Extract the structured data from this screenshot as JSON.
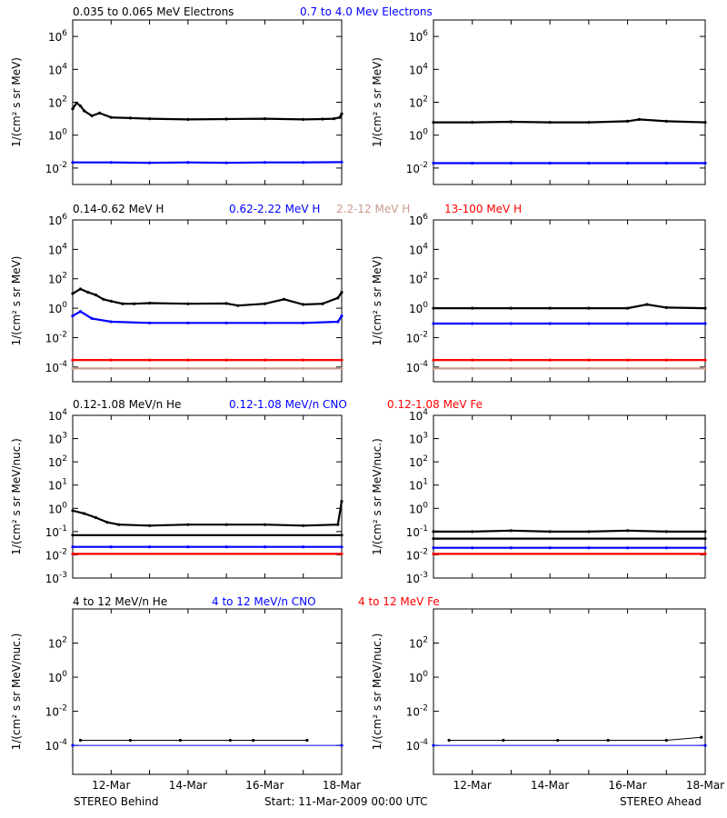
{
  "figure": {
    "footer_left": "STEREO Behind",
    "footer_center": "Start: 11-Mar-2009 00:00 UTC",
    "footer_right": "STEREO Ahead"
  },
  "colors": {
    "black": "#000000",
    "blue": "#0000ff",
    "tan": "#c89a8c",
    "red": "#ff0000"
  },
  "chart_data": [
    {
      "type": "scatter",
      "row": 1,
      "title_series": [
        {
          "name": "0.035 to 0.065 MeV Electrons",
          "color": "#000000"
        },
        {
          "name": "0.7 to 4.0 Mev Electrons",
          "color": "#0000ff"
        }
      ],
      "ylabel": "1/(cm² s sr MeV)",
      "yscale": "log",
      "ylim": [
        0.001,
        10000000
      ],
      "yticks": [
        {
          "base": "10",
          "exp": "-2"
        },
        {
          "base": "10",
          "exp": "0"
        },
        {
          "base": "10",
          "exp": "2"
        },
        {
          "base": "10",
          "exp": "4"
        },
        {
          "base": "10",
          "exp": "6"
        }
      ],
      "ytick_values": [
        0.01,
        1,
        100,
        10000,
        1000000
      ],
      "panels": [
        {
          "name": "STEREO Behind",
          "series": [
            {
              "color": "#000000",
              "x_days": [
                0,
                0.1,
                0.2,
                0.3,
                0.5,
                0.7,
                1,
                1.5,
                2,
                3,
                4,
                5,
                6,
                6.5,
                6.8,
                6.95,
                7
              ],
              "y": [
                40,
                90,
                60,
                30,
                15,
                22,
                12,
                11,
                10,
                9,
                9.5,
                10,
                9,
                9.5,
                10,
                12,
                20
              ]
            },
            {
              "color": "#0000ff",
              "x_days": [
                0,
                1,
                2,
                3,
                4,
                5,
                6,
                7
              ],
              "y": [
                0.022,
                0.022,
                0.021,
                0.022,
                0.021,
                0.022,
                0.022,
                0.023
              ]
            }
          ]
        },
        {
          "name": "STEREO Ahead",
          "series": [
            {
              "color": "#000000",
              "x_days": [
                0,
                1,
                2,
                3,
                4,
                5,
                5.3,
                6,
                7
              ],
              "y": [
                6,
                6,
                6.5,
                6,
                6,
                7,
                9,
                7,
                6
              ]
            },
            {
              "color": "#0000ff",
              "x_days": [
                0,
                1,
                2,
                3,
                4,
                5,
                6,
                7
              ],
              "y": [
                0.02,
                0.02,
                0.02,
                0.02,
                0.02,
                0.02,
                0.02,
                0.02
              ]
            }
          ]
        }
      ]
    },
    {
      "type": "scatter",
      "row": 2,
      "title_series": [
        {
          "name": "0.14-0.62 MeV H",
          "color": "#000000"
        },
        {
          "name": "0.62-2.22 MeV H",
          "color": "#0000ff"
        },
        {
          "name": "2.2-12 MeV H",
          "color": "#c89a8c"
        },
        {
          "name": "13-100 MeV H",
          "color": "#ff0000"
        }
      ],
      "ylabel": "1/(cm² s sr MeV)",
      "yscale": "log",
      "ylim": [
        1e-05,
        1000000
      ],
      "yticks": [
        {
          "base": "10",
          "exp": "-4"
        },
        {
          "base": "10",
          "exp": "-2"
        },
        {
          "base": "10",
          "exp": "0"
        },
        {
          "base": "10",
          "exp": "2"
        },
        {
          "base": "10",
          "exp": "4"
        },
        {
          "base": "10",
          "exp": "6"
        }
      ],
      "ytick_values": [
        0.0001,
        0.01,
        1,
        100,
        10000,
        1000000
      ],
      "panels": [
        {
          "name": "STEREO Behind",
          "series": [
            {
              "color": "#000000",
              "x_days": [
                0,
                0.2,
                0.4,
                0.6,
                0.8,
                1,
                1.3,
                1.6,
                2,
                3,
                4,
                4.3,
                5,
                5.5,
                6,
                6.5,
                6.9,
                7
              ],
              "y": [
                10,
                20,
                12,
                8,
                4,
                3,
                2,
                2,
                2.2,
                2,
                2.1,
                1.5,
                2,
                4,
                1.8,
                2,
                5,
                12
              ]
            },
            {
              "color": "#0000ff",
              "x_days": [
                0,
                0.2,
                0.5,
                1,
                2,
                3,
                4,
                5,
                6,
                6.9,
                7
              ],
              "y": [
                0.3,
                0.6,
                0.2,
                0.12,
                0.1,
                0.1,
                0.1,
                0.1,
                0.1,
                0.12,
                0.3
              ]
            },
            {
              "color": "#c89a8c",
              "x_days": [
                0,
                1,
                2,
                3,
                4,
                5,
                6,
                7
              ],
              "y": [
                8e-05,
                8e-05,
                8e-05,
                8e-05,
                8e-05,
                8e-05,
                8e-05,
                8e-05
              ]
            },
            {
              "color": "#ff0000",
              "x_days": [
                0,
                1,
                2,
                3,
                4,
                5,
                6,
                7
              ],
              "y": [
                0.0003,
                0.0003,
                0.0003,
                0.0003,
                0.0003,
                0.0003,
                0.0003,
                0.0003
              ]
            }
          ]
        },
        {
          "name": "STEREO Ahead",
          "series": [
            {
              "color": "#000000",
              "x_days": [
                0,
                1,
                2,
                3,
                4,
                5,
                5.5,
                6,
                7
              ],
              "y": [
                1,
                1,
                1,
                1,
                1,
                1,
                1.8,
                1.1,
                1
              ]
            },
            {
              "color": "#0000ff",
              "x_days": [
                0,
                1,
                2,
                3,
                4,
                5,
                6,
                7
              ],
              "y": [
                0.09,
                0.09,
                0.09,
                0.09,
                0.09,
                0.09,
                0.09,
                0.09
              ]
            },
            {
              "color": "#c89a8c",
              "x_days": [
                0,
                1,
                2,
                3,
                4,
                5,
                6,
                7
              ],
              "y": [
                8e-05,
                8e-05,
                8e-05,
                8e-05,
                8e-05,
                8e-05,
                8e-05,
                8e-05
              ]
            },
            {
              "color": "#ff0000",
              "x_days": [
                0,
                1,
                2,
                3,
                4,
                5,
                6,
                7
              ],
              "y": [
                0.0003,
                0.0003,
                0.0003,
                0.0003,
                0.0003,
                0.0003,
                0.0003,
                0.0003
              ]
            }
          ]
        }
      ]
    },
    {
      "type": "scatter",
      "row": 3,
      "title_series": [
        {
          "name": "0.12-1.08 MeV/n He",
          "color": "#000000"
        },
        {
          "name": "0.12-1.08 MeV/n CNO",
          "color": "#0000ff"
        },
        {
          "name": "0.12-1.08 MeV Fe",
          "color": "#ff0000"
        }
      ],
      "ylabel": "1/(cm² s sr MeV/nuc.)",
      "yscale": "log",
      "ylim": [
        0.001,
        10000
      ],
      "yticks": [
        {
          "base": "10",
          "exp": "-3"
        },
        {
          "base": "10",
          "exp": "-2"
        },
        {
          "base": "10",
          "exp": "-1"
        },
        {
          "base": "10",
          "exp": "0"
        },
        {
          "base": "10",
          "exp": "1"
        },
        {
          "base": "10",
          "exp": "2"
        },
        {
          "base": "10",
          "exp": "3"
        },
        {
          "base": "10",
          "exp": "4"
        }
      ],
      "ytick_values": [
        0.001,
        0.01,
        0.1,
        1,
        10,
        100,
        1000,
        10000
      ],
      "panels": [
        {
          "name": "STEREO Behind",
          "series": [
            {
              "color": "#000000",
              "x_days": [
                0,
                0.3,
                0.6,
                0.9,
                1.2,
                2,
                3,
                4,
                5,
                6,
                6.9,
                7
              ],
              "y": [
                0.8,
                0.6,
                0.4,
                0.25,
                0.2,
                0.18,
                0.2,
                0.2,
                0.2,
                0.18,
                0.2,
                2
              ]
            },
            {
              "color": "#000000",
              "x_days": [
                0,
                7
              ],
              "y": [
                0.07,
                0.07
              ]
            },
            {
              "color": "#0000ff",
              "x_days": [
                0,
                1,
                2,
                3,
                4,
                5,
                6,
                7
              ],
              "y": [
                0.022,
                0.022,
                0.022,
                0.022,
                0.022,
                0.022,
                0.022,
                0.022
              ]
            },
            {
              "color": "#ff0000",
              "x_days": [
                0,
                7
              ],
              "y": [
                0.011,
                0.011
              ]
            }
          ]
        },
        {
          "name": "STEREO Ahead",
          "series": [
            {
              "color": "#000000",
              "x_days": [
                0,
                1,
                2,
                3,
                4,
                5,
                6,
                7
              ],
              "y": [
                0.1,
                0.1,
                0.11,
                0.1,
                0.1,
                0.11,
                0.1,
                0.1
              ]
            },
            {
              "color": "#000000",
              "x_days": [
                0,
                7
              ],
              "y": [
                0.05,
                0.05
              ]
            },
            {
              "color": "#0000ff",
              "x_days": [
                0,
                1,
                2,
                3,
                4,
                5,
                6,
                7
              ],
              "y": [
                0.02,
                0.02,
                0.02,
                0.02,
                0.02,
                0.02,
                0.02,
                0.02
              ]
            },
            {
              "color": "#ff0000",
              "x_days": [
                0,
                7
              ],
              "y": [
                0.011,
                0.011
              ]
            }
          ]
        }
      ]
    },
    {
      "type": "scatter",
      "row": 4,
      "title_series": [
        {
          "name": "4 to 12 MeV/n He",
          "color": "#000000"
        },
        {
          "name": "4 to 12 MeV/n CNO",
          "color": "#0000ff"
        },
        {
          "name": "4 to 12 MeV Fe",
          "color": "#ff0000"
        }
      ],
      "ylabel": "1/(cm² s sr MeV/nuc.)",
      "yscale": "log",
      "ylim": [
        2e-06,
        10000
      ],
      "yticks": [
        {
          "base": "10",
          "exp": "-4"
        },
        {
          "base": "10",
          "exp": "-2"
        },
        {
          "base": "10",
          "exp": "0"
        },
        {
          "base": "10",
          "exp": "2"
        }
      ],
      "ytick_values": [
        0.0001,
        0.01,
        1,
        100
      ],
      "x_ticks": [
        {
          "label": "12-Mar",
          "day": 1
        },
        {
          "label": "14-Mar",
          "day": 3
        },
        {
          "label": "16-Mar",
          "day": 5
        },
        {
          "label": "18-Mar",
          "day": 7
        }
      ],
      "panels": [
        {
          "name": "STEREO Behind",
          "series": [
            {
              "color": "#000000",
              "x_days": [
                0.2,
                1.5,
                2.8,
                4.1,
                4.7,
                6.1
              ],
              "y": [
                0.0002,
                0.0002,
                0.0002,
                0.0002,
                0.0002,
                0.0002
              ]
            },
            {
              "color": "#0000ff",
              "x_days": [
                0,
                7
              ],
              "y": [
                0.0001,
                0.0001
              ]
            }
          ]
        },
        {
          "name": "STEREO Ahead",
          "series": [
            {
              "color": "#000000",
              "x_days": [
                0.4,
                1.8,
                3.2,
                4.5,
                6.0,
                6.9
              ],
              "y": [
                0.0002,
                0.0002,
                0.0002,
                0.0002,
                0.0002,
                0.0003
              ]
            },
            {
              "color": "#0000ff",
              "x_days": [
                0,
                7
              ],
              "y": [
                0.0001,
                0.0001
              ]
            }
          ]
        }
      ]
    }
  ]
}
